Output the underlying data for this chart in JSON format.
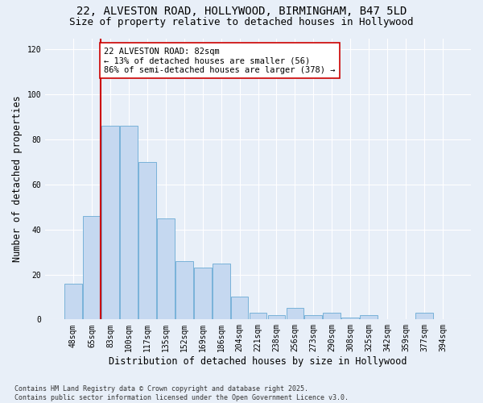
{
  "title_line1": "22, ALVESTON ROAD, HOLLYWOOD, BIRMINGHAM, B47 5LD",
  "title_line2": "Size of property relative to detached houses in Hollywood",
  "xlabel": "Distribution of detached houses by size in Hollywood",
  "ylabel": "Number of detached properties",
  "categories": [
    "48sqm",
    "65sqm",
    "83sqm",
    "100sqm",
    "117sqm",
    "135sqm",
    "152sqm",
    "169sqm",
    "186sqm",
    "204sqm",
    "221sqm",
    "238sqm",
    "256sqm",
    "273sqm",
    "290sqm",
    "308sqm",
    "325sqm",
    "342sqm",
    "359sqm",
    "377sqm",
    "394sqm"
  ],
  "values": [
    16,
    46,
    86,
    86,
    70,
    45,
    26,
    23,
    25,
    10,
    3,
    2,
    5,
    2,
    3,
    1,
    2,
    0,
    0,
    3,
    0
  ],
  "bar_color": "#c5d8f0",
  "bar_edge_color": "#6aaad4",
  "background_color": "#e8eff8",
  "grid_color": "#ffffff",
  "ylim": [
    0,
    125
  ],
  "yticks": [
    0,
    20,
    40,
    60,
    80,
    100,
    120
  ],
  "annotation_text": "22 ALVESTON ROAD: 82sqm\n← 13% of detached houses are smaller (56)\n86% of semi-detached houses are larger (378) →",
  "vline_color": "#cc0000",
  "annotation_box_color": "#cc0000",
  "footer_text": "Contains HM Land Registry data © Crown copyright and database right 2025.\nContains public sector information licensed under the Open Government Licence v3.0.",
  "title_fontsize": 10,
  "subtitle_fontsize": 9,
  "axis_label_fontsize": 8.5,
  "tick_fontsize": 7,
  "annotation_fontsize": 7.5,
  "footer_fontsize": 6
}
